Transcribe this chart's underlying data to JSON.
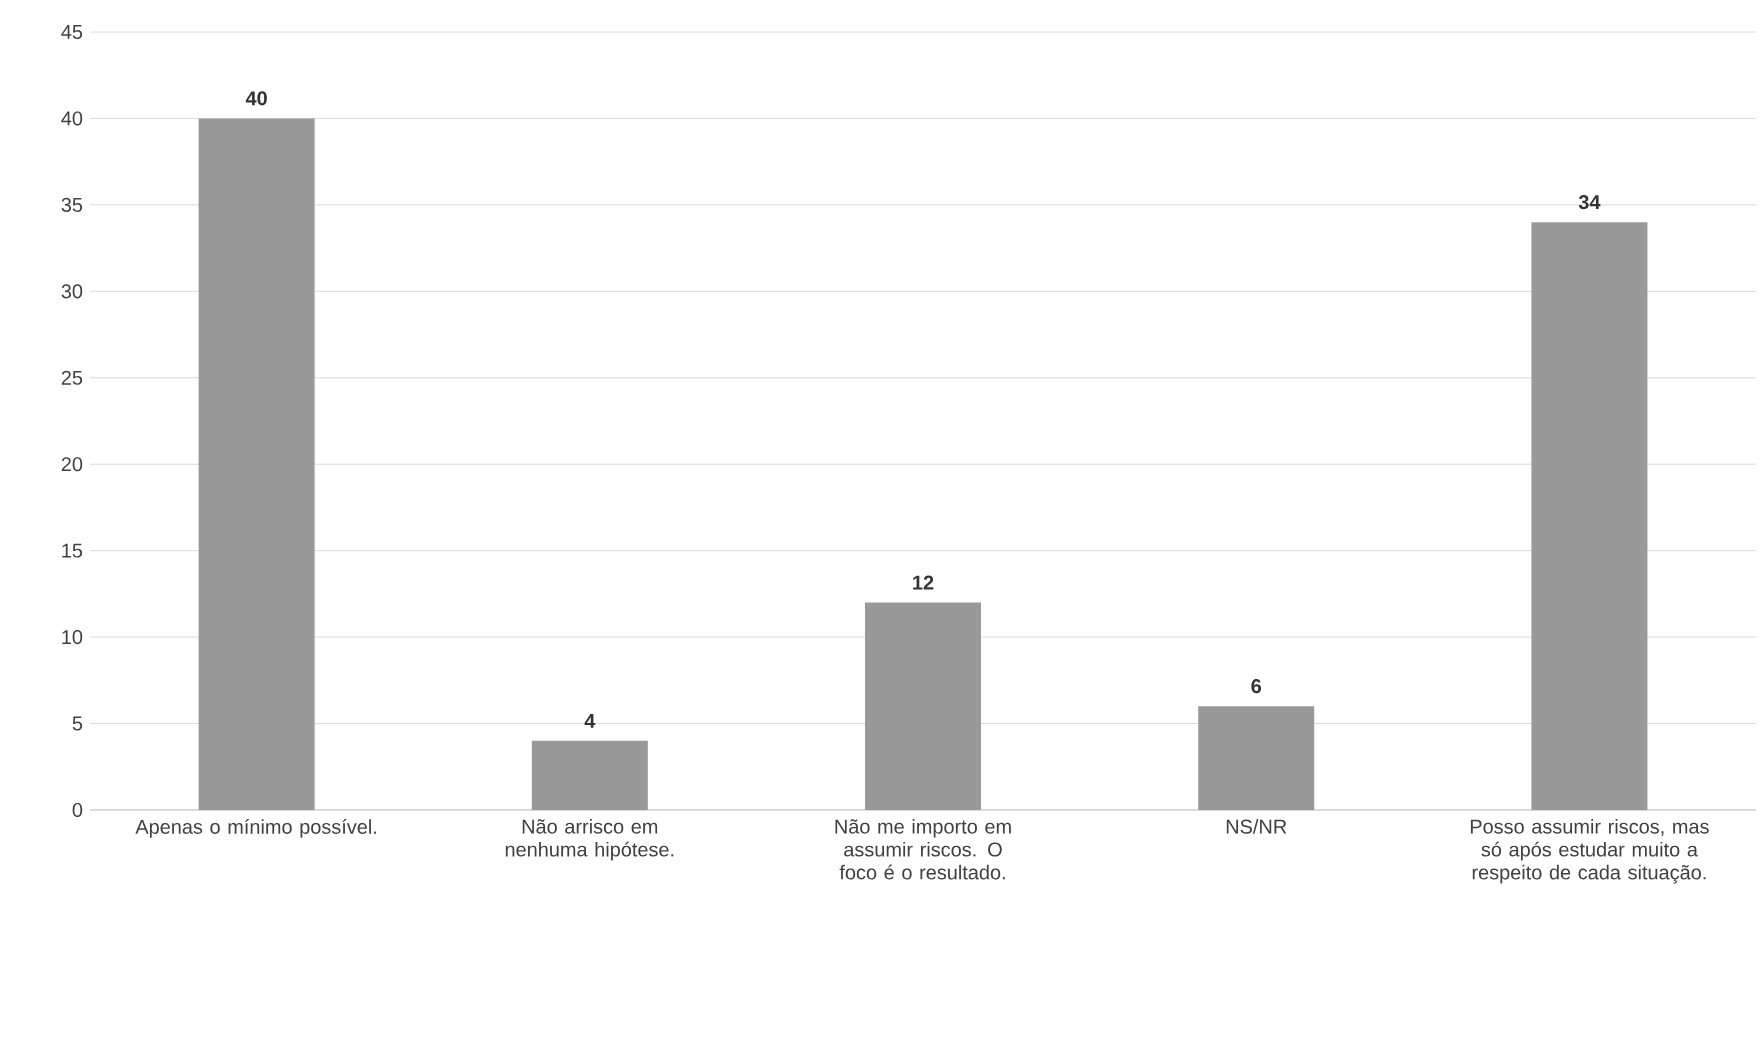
{
  "chart_data": {
    "type": "bar",
    "categories": [
      "Apenas o mínimo possível.",
      "Não arrisco em nenhuma hipótese.",
      "Não me importo em assumir riscos. O foco é o resultado.",
      "NS/NR",
      "Posso assumir riscos, mas só após estudar muito a respeito de cada situação."
    ],
    "values": [
      40,
      4,
      12,
      6,
      34
    ],
    "color": "#999999",
    "ylim": [
      0,
      45
    ],
    "yticks": [
      0,
      5,
      10,
      15,
      20,
      25,
      30,
      35,
      40,
      45
    ],
    "grid": "y",
    "data_labels": true
  }
}
